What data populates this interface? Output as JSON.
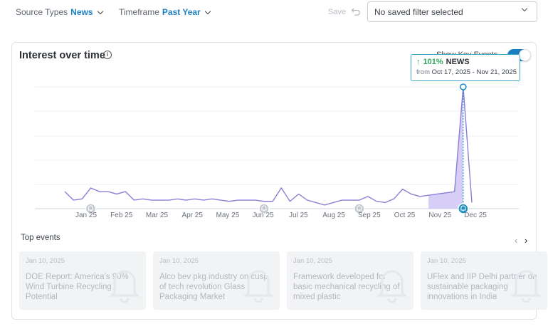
{
  "filters": {
    "source_label": "Source Types",
    "source_value": "News",
    "timeframe_label": "Timeframe",
    "timeframe_value": "Past Year",
    "save_label": "Save",
    "saved_filter_value": "No saved filter selected"
  },
  "card": {
    "title": "Interest over time",
    "key_events_label": "Show Key Events",
    "key_events_on": true
  },
  "tooltip": {
    "percent": "101%",
    "series": "NEWS",
    "from_label": "from",
    "range": "Oct 17, 2025 - Nov 21, 2025"
  },
  "chart_data": {
    "type": "line",
    "x_labels": [
      "Jan 25",
      "Feb 25",
      "Mar 25",
      "Apr 25",
      "May 25",
      "Jun 25",
      "Jul 25",
      "Aug 25",
      "Sep 25",
      "Oct 25",
      "Nov 25",
      "Dec 25"
    ],
    "values": [
      14,
      7,
      8,
      17,
      14,
      14,
      12,
      14,
      7,
      8,
      7,
      7,
      7,
      8,
      7,
      8,
      7,
      8,
      7,
      6,
      7,
      7,
      7,
      6,
      6,
      17,
      6,
      12,
      7,
      5,
      3,
      5,
      7,
      7,
      7,
      10,
      6,
      5,
      8,
      16,
      12,
      10,
      11,
      12,
      13,
      14,
      100,
      5
    ],
    "highlight_index": 46,
    "event_markers": [
      3,
      23,
      34,
      46
    ],
    "ylim": [
      0,
      100
    ],
    "grid": true,
    "colors": {
      "line": "#8b7fd6",
      "fill": "#cfc6f5",
      "highlight": "#1a8fbf"
    }
  },
  "top_events": {
    "label": "Top events",
    "items": [
      {
        "date": "Jan 10, 2025",
        "title": "DOE Report: America's 90% Wind Turbine Recycling Potential"
      },
      {
        "date": "Jan 10, 2025",
        "title": "Alco bev pkg industry on cusp of tech revolution Glass Packaging Market"
      },
      {
        "date": "Jan 10, 2025",
        "title": "Framework developed for basic mechanical recycling of mixed plastic"
      },
      {
        "date": "Jan 10, 2025",
        "title": "UFlex and IIP Delhi partner on sustainable packaging innovations in India"
      }
    ]
  }
}
